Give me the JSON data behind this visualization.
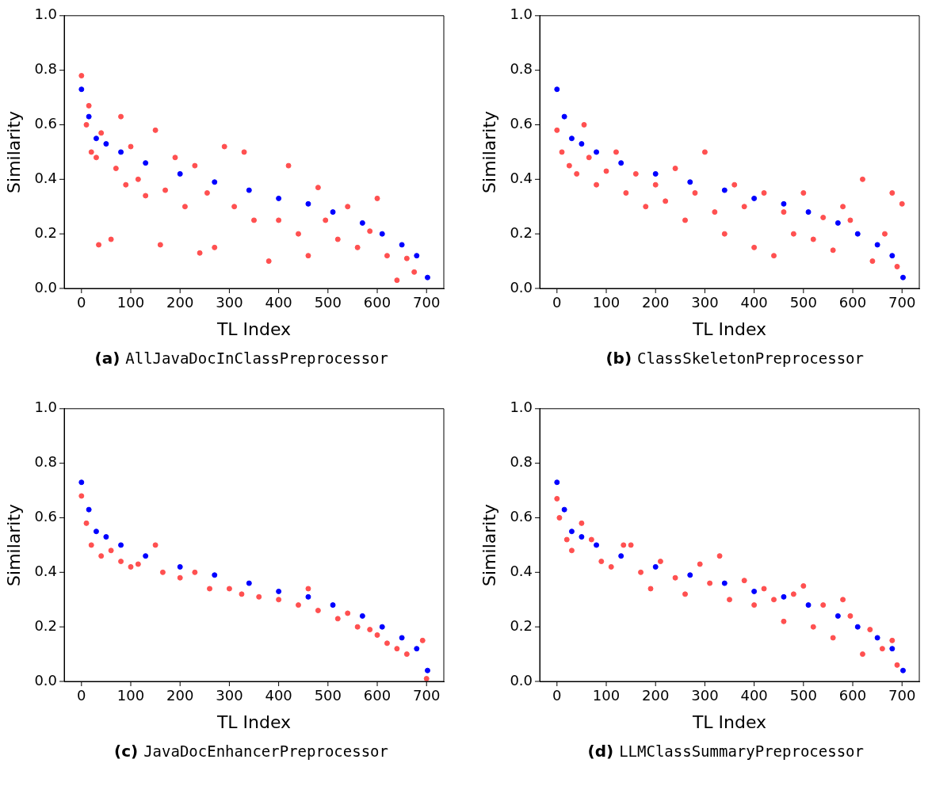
{
  "chart_data": [
    {
      "type": "scatter",
      "title": "(a) AllJavaDocInClassPreprocessor",
      "xlabel": "TL Index",
      "ylabel": "Similarity",
      "xlim": [
        -35,
        735
      ],
      "ylim": [
        0,
        1
      ],
      "xticks": [
        0,
        100,
        200,
        300,
        400,
        500,
        600,
        700
      ],
      "yticks": [
        {
          "value": 0,
          "label": "0.0"
        },
        {
          "value": 0.2,
          "label": "0.2"
        },
        {
          "value": 0.4,
          "label": "0.4"
        },
        {
          "value": 0.6,
          "label": "0.6"
        },
        {
          "value": 0.8,
          "label": "0.8"
        },
        {
          "value": 1,
          "label": "1.0"
        }
      ],
      "marker": "circle",
      "grid": false,
      "legend": false,
      "series": [
        {
          "color": "#ff5050",
          "x": [
            0,
            10,
            15,
            20,
            30,
            35,
            40,
            60,
            70,
            80,
            90,
            100,
            115,
            130,
            150,
            160,
            170,
            190,
            210,
            230,
            240,
            255,
            270,
            290,
            310,
            330,
            350,
            380,
            400,
            420,
            440,
            460,
            480,
            495,
            520,
            540,
            560,
            585,
            600,
            620,
            640,
            660,
            675
          ],
          "values": [
            0.78,
            0.6,
            0.67,
            0.5,
            0.48,
            0.16,
            0.57,
            0.18,
            0.44,
            0.63,
            0.38,
            0.52,
            0.4,
            0.34,
            0.58,
            0.16,
            0.36,
            0.48,
            0.3,
            0.45,
            0.13,
            0.35,
            0.15,
            0.52,
            0.3,
            0.5,
            0.25,
            0.1,
            0.25,
            0.45,
            0.2,
            0.12,
            0.37,
            0.25,
            0.18,
            0.3,
            0.15,
            0.21,
            0.33,
            0.12,
            0.03,
            0.11,
            0.06
          ]
        },
        {
          "color": "#0000ff",
          "x": [
            0,
            15,
            30,
            50,
            80,
            130,
            200,
            270,
            340,
            400,
            460,
            510,
            570,
            610,
            650,
            680,
            702
          ],
          "values": [
            0.73,
            0.63,
            0.55,
            0.53,
            0.5,
            0.46,
            0.42,
            0.39,
            0.36,
            0.33,
            0.31,
            0.28,
            0.24,
            0.2,
            0.16,
            0.12,
            0.04
          ]
        }
      ]
    },
    {
      "type": "scatter",
      "title": "(b) ClassSkeletonPreprocessor",
      "xlabel": "TL Index",
      "ylabel": "Similarity",
      "xlim": [
        -35,
        735
      ],
      "ylim": [
        0,
        1
      ],
      "xticks": [
        0,
        100,
        200,
        300,
        400,
        500,
        600,
        700
      ],
      "yticks": [
        {
          "value": 0,
          "label": "0.0"
        },
        {
          "value": 0.2,
          "label": "0.2"
        },
        {
          "value": 0.4,
          "label": "0.4"
        },
        {
          "value": 0.6,
          "label": "0.6"
        },
        {
          "value": 0.8,
          "label": "0.8"
        },
        {
          "value": 1,
          "label": "1.0"
        }
      ],
      "marker": "circle",
      "grid": false,
      "legend": false,
      "series": [
        {
          "color": "#ff5050",
          "x": [
            0,
            10,
            25,
            40,
            55,
            65,
            80,
            100,
            120,
            140,
            160,
            180,
            200,
            220,
            240,
            260,
            280,
            300,
            320,
            340,
            360,
            380,
            400,
            420,
            440,
            460,
            480,
            500,
            520,
            540,
            560,
            580,
            595,
            620,
            640,
            665,
            680,
            690,
            700
          ],
          "values": [
            0.58,
            0.5,
            0.45,
            0.42,
            0.6,
            0.48,
            0.38,
            0.43,
            0.5,
            0.35,
            0.42,
            0.3,
            0.38,
            0.32,
            0.44,
            0.25,
            0.35,
            0.5,
            0.28,
            0.2,
            0.38,
            0.3,
            0.15,
            0.35,
            0.12,
            0.28,
            0.2,
            0.35,
            0.18,
            0.26,
            0.14,
            0.3,
            0.25,
            0.4,
            0.1,
            0.2,
            0.35,
            0.08,
            0.31
          ]
        },
        {
          "color": "#0000ff",
          "x": [
            0,
            15,
            30,
            50,
            80,
            130,
            200,
            270,
            340,
            400,
            460,
            510,
            570,
            610,
            650,
            680,
            702
          ],
          "values": [
            0.73,
            0.63,
            0.55,
            0.53,
            0.5,
            0.46,
            0.42,
            0.39,
            0.36,
            0.33,
            0.31,
            0.28,
            0.24,
            0.2,
            0.16,
            0.12,
            0.04
          ]
        }
      ]
    },
    {
      "type": "scatter",
      "title": "(c) JavaDocEnhancerPreprocessor",
      "xlabel": "TL Index",
      "ylabel": "Similarity",
      "xlim": [
        -35,
        735
      ],
      "ylim": [
        0,
        1
      ],
      "xticks": [
        0,
        100,
        200,
        300,
        400,
        500,
        600,
        700
      ],
      "yticks": [
        {
          "value": 0,
          "label": "0.0"
        },
        {
          "value": 0.2,
          "label": "0.2"
        },
        {
          "value": 0.4,
          "label": "0.4"
        },
        {
          "value": 0.6,
          "label": "0.6"
        },
        {
          "value": 0.8,
          "label": "0.8"
        },
        {
          "value": 1,
          "label": "1.0"
        }
      ],
      "marker": "circle",
      "grid": false,
      "legend": false,
      "series": [
        {
          "color": "#ff5050",
          "x": [
            0,
            10,
            20,
            40,
            60,
            80,
            100,
            115,
            150,
            165,
            200,
            230,
            260,
            300,
            325,
            360,
            400,
            440,
            460,
            480,
            520,
            540,
            560,
            585,
            600,
            620,
            640,
            660,
            692,
            700
          ],
          "values": [
            0.68,
            0.58,
            0.5,
            0.46,
            0.48,
            0.44,
            0.42,
            0.43,
            0.5,
            0.4,
            0.38,
            0.4,
            0.34,
            0.34,
            0.32,
            0.31,
            0.3,
            0.28,
            0.34,
            0.26,
            0.23,
            0.25,
            0.2,
            0.19,
            0.17,
            0.14,
            0.12,
            0.1,
            0.15,
            0.01
          ]
        },
        {
          "color": "#0000ff",
          "x": [
            0,
            15,
            30,
            50,
            80,
            130,
            200,
            270,
            340,
            400,
            460,
            510,
            570,
            610,
            650,
            680,
            702
          ],
          "values": [
            0.73,
            0.63,
            0.55,
            0.53,
            0.5,
            0.46,
            0.42,
            0.39,
            0.36,
            0.33,
            0.31,
            0.28,
            0.24,
            0.2,
            0.16,
            0.12,
            0.04
          ]
        }
      ]
    },
    {
      "type": "scatter",
      "title": "(d) LLMClassSummaryPreprocessor",
      "xlabel": "TL Index",
      "ylabel": "Similarity",
      "xlim": [
        -35,
        735
      ],
      "ylim": [
        0,
        1
      ],
      "xticks": [
        0,
        100,
        200,
        300,
        400,
        500,
        600,
        700
      ],
      "yticks": [
        {
          "value": 0,
          "label": "0.0"
        },
        {
          "value": 0.2,
          "label": "0.2"
        },
        {
          "value": 0.4,
          "label": "0.4"
        },
        {
          "value": 0.6,
          "label": "0.6"
        },
        {
          "value": 0.8,
          "label": "0.8"
        },
        {
          "value": 1,
          "label": "1.0"
        }
      ],
      "marker": "circle",
      "grid": false,
      "legend": false,
      "series": [
        {
          "color": "#ff5050",
          "x": [
            0,
            5,
            20,
            30,
            50,
            70,
            90,
            110,
            135,
            150,
            170,
            190,
            210,
            240,
            260,
            290,
            310,
            330,
            350,
            380,
            400,
            420,
            440,
            460,
            480,
            500,
            520,
            540,
            560,
            580,
            595,
            620,
            635,
            660,
            680,
            690
          ],
          "values": [
            0.67,
            0.6,
            0.52,
            0.48,
            0.58,
            0.52,
            0.44,
            0.42,
            0.5,
            0.5,
            0.4,
            0.34,
            0.44,
            0.38,
            0.32,
            0.43,
            0.36,
            0.46,
            0.3,
            0.37,
            0.28,
            0.34,
            0.3,
            0.22,
            0.32,
            0.35,
            0.2,
            0.28,
            0.16,
            0.3,
            0.24,
            0.1,
            0.19,
            0.12,
            0.15,
            0.06
          ]
        },
        {
          "color": "#0000ff",
          "x": [
            0,
            15,
            30,
            50,
            80,
            130,
            200,
            270,
            340,
            400,
            460,
            510,
            570,
            610,
            650,
            680,
            702
          ],
          "values": [
            0.73,
            0.63,
            0.55,
            0.53,
            0.5,
            0.46,
            0.42,
            0.39,
            0.36,
            0.33,
            0.31,
            0.28,
            0.24,
            0.2,
            0.16,
            0.12,
            0.04
          ]
        }
      ]
    }
  ]
}
